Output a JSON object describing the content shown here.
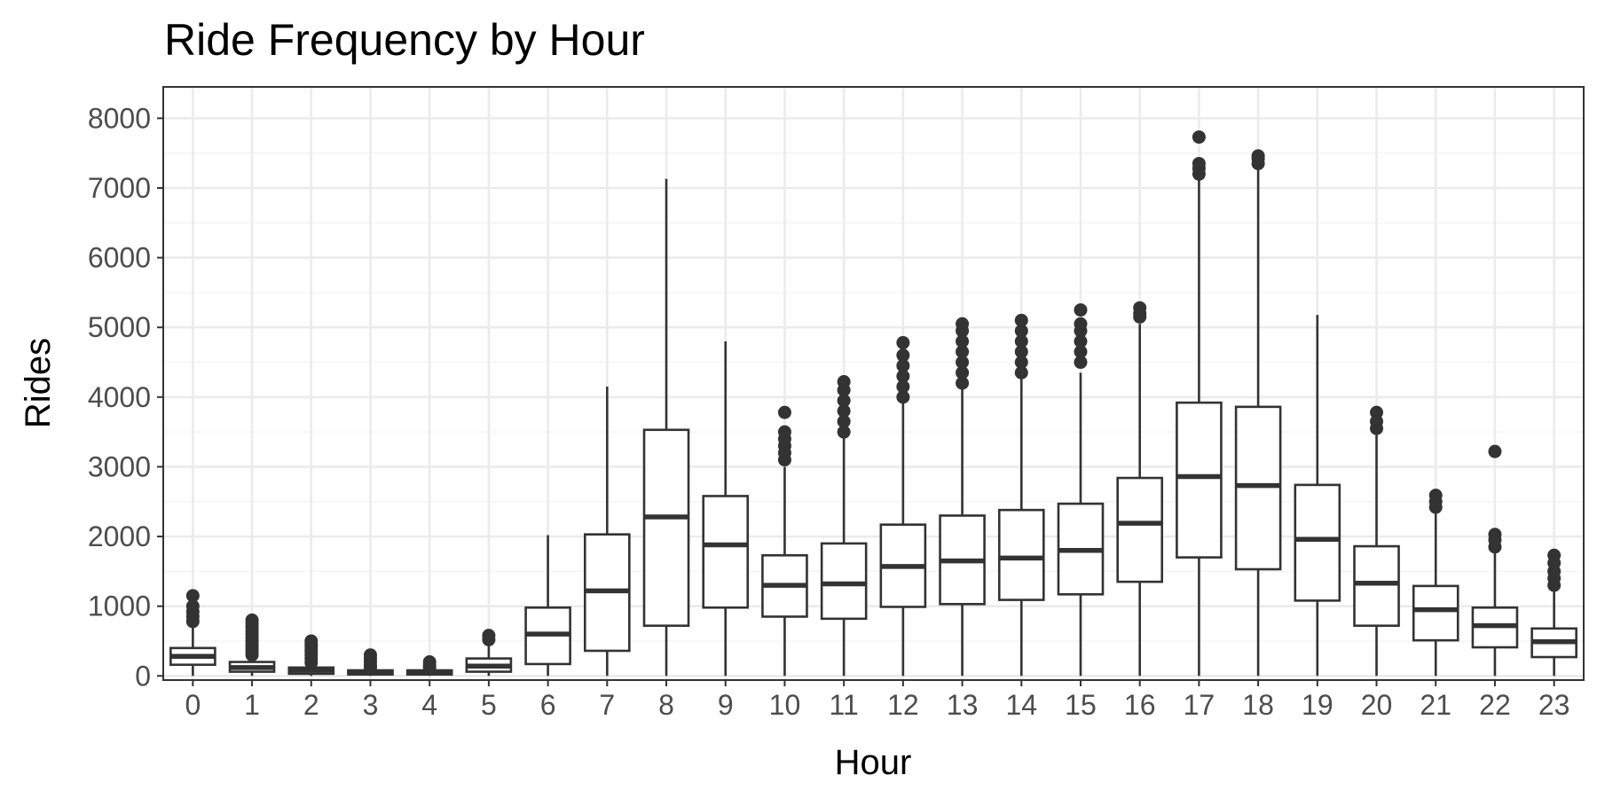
{
  "chart_data": {
    "type": "boxplot",
    "title": "Ride Frequency by Hour",
    "xlabel": "Hour",
    "ylabel": "Rides",
    "ylim": [
      -60,
      8450
    ],
    "yticks": [
      0,
      1000,
      2000,
      3000,
      4000,
      5000,
      6000,
      7000,
      8000
    ],
    "ytick_labels": [
      "0",
      "1000",
      "2000",
      "3000",
      "4000",
      "5000",
      "6000",
      "7000",
      "8000"
    ],
    "grid": true,
    "theme": "bw",
    "categories": [
      "0",
      "1",
      "2",
      "3",
      "4",
      "5",
      "6",
      "7",
      "8",
      "9",
      "10",
      "11",
      "12",
      "13",
      "14",
      "15",
      "16",
      "17",
      "18",
      "19",
      "20",
      "21",
      "22",
      "23"
    ],
    "boxes": [
      {
        "hour": "0",
        "lower": 0,
        "q1": 160,
        "median": 280,
        "q3": 400,
        "upper": 750,
        "outliers": [
          780,
          850,
          920,
          1000,
          1150
        ]
      },
      {
        "hour": "1",
        "lower": 0,
        "q1": 60,
        "median": 120,
        "q3": 200,
        "upper": 280,
        "outliers": [
          300,
          350,
          400,
          450,
          500,
          550,
          600,
          650,
          700,
          750,
          800
        ]
      },
      {
        "hour": "2",
        "lower": 0,
        "q1": 30,
        "median": 80,
        "q3": 120,
        "upper": 170,
        "outliers": [
          190,
          250,
          300,
          350,
          400,
          450,
          500
        ]
      },
      {
        "hour": "3",
        "lower": 0,
        "q1": 20,
        "median": 50,
        "q3": 80,
        "upper": 100,
        "outliers": [
          120,
          150,
          200,
          250,
          300
        ]
      },
      {
        "hour": "4",
        "lower": 0,
        "q1": 20,
        "median": 50,
        "q3": 80,
        "upper": 100,
        "outliers": [
          120,
          150,
          200
        ]
      },
      {
        "hour": "5",
        "lower": 0,
        "q1": 60,
        "median": 140,
        "q3": 250,
        "upper": 480,
        "outliers": [
          520,
          580
        ]
      },
      {
        "hour": "6",
        "lower": 0,
        "q1": 170,
        "median": 600,
        "q3": 980,
        "upper": 2020,
        "outliers": []
      },
      {
        "hour": "7",
        "lower": 0,
        "q1": 360,
        "median": 1220,
        "q3": 2030,
        "upper": 4150,
        "outliers": []
      },
      {
        "hour": "8",
        "lower": 0,
        "q1": 720,
        "median": 2280,
        "q3": 3530,
        "upper": 7130,
        "outliers": []
      },
      {
        "hour": "9",
        "lower": 0,
        "q1": 980,
        "median": 1880,
        "q3": 2580,
        "upper": 4800,
        "outliers": []
      },
      {
        "hour": "10",
        "lower": 0,
        "q1": 850,
        "median": 1300,
        "q3": 1730,
        "upper": 3000,
        "outliers": [
          3100,
          3200,
          3300,
          3400,
          3500,
          3780
        ]
      },
      {
        "hour": "11",
        "lower": 0,
        "q1": 820,
        "median": 1320,
        "q3": 1900,
        "upper": 3450,
        "outliers": [
          3500,
          3650,
          3800,
          3950,
          4100,
          4220
        ]
      },
      {
        "hour": "12",
        "lower": 0,
        "q1": 990,
        "median": 1570,
        "q3": 2170,
        "upper": 3950,
        "outliers": [
          4000,
          4150,
          4300,
          4450,
          4600,
          4780
        ]
      },
      {
        "hour": "13",
        "lower": 0,
        "q1": 1030,
        "median": 1650,
        "q3": 2300,
        "upper": 4150,
        "outliers": [
          4200,
          4350,
          4500,
          4650,
          4800,
          4950,
          5050
        ]
      },
      {
        "hour": "14",
        "lower": 0,
        "q1": 1090,
        "median": 1690,
        "q3": 2380,
        "upper": 4300,
        "outliers": [
          4350,
          4500,
          4650,
          4800,
          4950,
          5100
        ]
      },
      {
        "hour": "15",
        "lower": 0,
        "q1": 1170,
        "median": 1800,
        "q3": 2470,
        "upper": 4350,
        "outliers": [
          4500,
          4650,
          4800,
          4950,
          5050,
          5250
        ]
      },
      {
        "hour": "16",
        "lower": 0,
        "q1": 1350,
        "median": 2190,
        "q3": 2840,
        "upper": 5050,
        "outliers": [
          5150,
          5200,
          5280
        ]
      },
      {
        "hour": "17",
        "lower": 0,
        "q1": 1700,
        "median": 2860,
        "q3": 3920,
        "upper": 7150,
        "outliers": [
          7200,
          7280,
          7350,
          7730
        ]
      },
      {
        "hour": "18",
        "lower": 0,
        "q1": 1530,
        "median": 2730,
        "q3": 3860,
        "upper": 7300,
        "outliers": [
          7350,
          7420,
          7460
        ]
      },
      {
        "hour": "19",
        "lower": 0,
        "q1": 1080,
        "median": 1960,
        "q3": 2740,
        "upper": 5180,
        "outliers": []
      },
      {
        "hour": "20",
        "lower": 0,
        "q1": 720,
        "median": 1330,
        "q3": 1860,
        "upper": 3500,
        "outliers": [
          3550,
          3650,
          3780
        ]
      },
      {
        "hour": "21",
        "lower": 0,
        "q1": 510,
        "median": 950,
        "q3": 1290,
        "upper": 2350,
        "outliers": [
          2420,
          2500,
          2590
        ]
      },
      {
        "hour": "22",
        "lower": 0,
        "q1": 410,
        "median": 720,
        "q3": 980,
        "upper": 1800,
        "outliers": [
          1850,
          1950,
          2030,
          3220
        ]
      },
      {
        "hour": "23",
        "lower": 0,
        "q1": 270,
        "median": 490,
        "q3": 680,
        "upper": 1250,
        "outliers": [
          1300,
          1400,
          1500,
          1620,
          1730
        ]
      }
    ]
  }
}
